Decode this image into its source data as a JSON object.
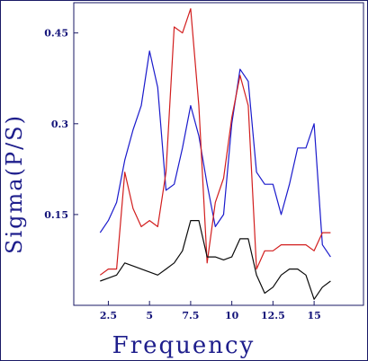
{
  "chart_data": {
    "type": "line",
    "xlabel": "Frequency",
    "ylabel": "Sigma(P/S)",
    "xlim": [
      0.4,
      18.0
    ],
    "ylim": [
      0.0,
      0.5
    ],
    "xticks": [
      2.5,
      5,
      7.5,
      10,
      12.5,
      15
    ],
    "xtick_labels": [
      "2.5",
      "5",
      "7.5",
      "10",
      "12.5",
      "15"
    ],
    "yticks": [
      0.15,
      0.3,
      0.45
    ],
    "ytick_labels": [
      "0.15",
      "0.3",
      "0.45"
    ],
    "grid": false,
    "series": [
      {
        "color": "#1a1acc",
        "points": [
          [
            2.0,
            0.12
          ],
          [
            2.5,
            0.14
          ],
          [
            3.0,
            0.17
          ],
          [
            3.5,
            0.24
          ],
          [
            4.0,
            0.29
          ],
          [
            4.5,
            0.33
          ],
          [
            5.0,
            0.42
          ],
          [
            5.5,
            0.36
          ],
          [
            6.0,
            0.19
          ],
          [
            6.5,
            0.2
          ],
          [
            7.0,
            0.26
          ],
          [
            7.5,
            0.33
          ],
          [
            8.0,
            0.28
          ],
          [
            8.5,
            0.2
          ],
          [
            9.0,
            0.13
          ],
          [
            9.5,
            0.15
          ],
          [
            10.0,
            0.3
          ],
          [
            10.5,
            0.39
          ],
          [
            11.0,
            0.37
          ],
          [
            11.5,
            0.22
          ],
          [
            12.0,
            0.2
          ],
          [
            12.5,
            0.2
          ],
          [
            13.0,
            0.15
          ],
          [
            13.5,
            0.2
          ],
          [
            14.0,
            0.26
          ],
          [
            14.5,
            0.26
          ],
          [
            15.0,
            0.3
          ],
          [
            15.5,
            0.1
          ],
          [
            16.0,
            0.08
          ]
        ]
      },
      {
        "color": "#d21e1e",
        "points": [
          [
            2.0,
            0.05
          ],
          [
            2.5,
            0.06
          ],
          [
            3.0,
            0.06
          ],
          [
            3.5,
            0.22
          ],
          [
            4.0,
            0.16
          ],
          [
            4.5,
            0.13
          ],
          [
            5.0,
            0.14
          ],
          [
            5.5,
            0.13
          ],
          [
            6.0,
            0.22
          ],
          [
            6.5,
            0.46
          ],
          [
            7.0,
            0.45
          ],
          [
            7.5,
            0.49
          ],
          [
            8.0,
            0.33
          ],
          [
            8.5,
            0.07
          ],
          [
            9.0,
            0.17
          ],
          [
            9.5,
            0.21
          ],
          [
            10.0,
            0.31
          ],
          [
            10.5,
            0.38
          ],
          [
            11.0,
            0.33
          ],
          [
            11.5,
            0.06
          ],
          [
            12.0,
            0.09
          ],
          [
            12.5,
            0.09
          ],
          [
            13.0,
            0.1
          ],
          [
            13.5,
            0.1
          ],
          [
            14.0,
            0.1
          ],
          [
            14.5,
            0.1
          ],
          [
            15.0,
            0.09
          ],
          [
            15.5,
            0.12
          ],
          [
            16.0,
            0.12
          ]
        ]
      },
      {
        "color": "#0a0a0a",
        "points": [
          [
            2.0,
            0.04
          ],
          [
            2.5,
            0.045
          ],
          [
            3.0,
            0.05
          ],
          [
            3.5,
            0.07
          ],
          [
            4.0,
            0.065
          ],
          [
            4.5,
            0.06
          ],
          [
            5.0,
            0.055
          ],
          [
            5.5,
            0.05
          ],
          [
            6.0,
            0.06
          ],
          [
            6.5,
            0.07
          ],
          [
            7.0,
            0.09
          ],
          [
            7.5,
            0.14
          ],
          [
            8.0,
            0.14
          ],
          [
            8.5,
            0.08
          ],
          [
            9.0,
            0.08
          ],
          [
            9.5,
            0.075
          ],
          [
            10.0,
            0.08
          ],
          [
            10.5,
            0.11
          ],
          [
            11.0,
            0.11
          ],
          [
            11.5,
            0.05
          ],
          [
            12.0,
            0.02
          ],
          [
            12.5,
            0.03
          ],
          [
            13.0,
            0.05
          ],
          [
            13.5,
            0.06
          ],
          [
            14.0,
            0.06
          ],
          [
            14.5,
            0.05
          ],
          [
            15.0,
            0.01
          ],
          [
            15.5,
            0.03
          ],
          [
            16.0,
            0.04
          ]
        ]
      }
    ]
  }
}
